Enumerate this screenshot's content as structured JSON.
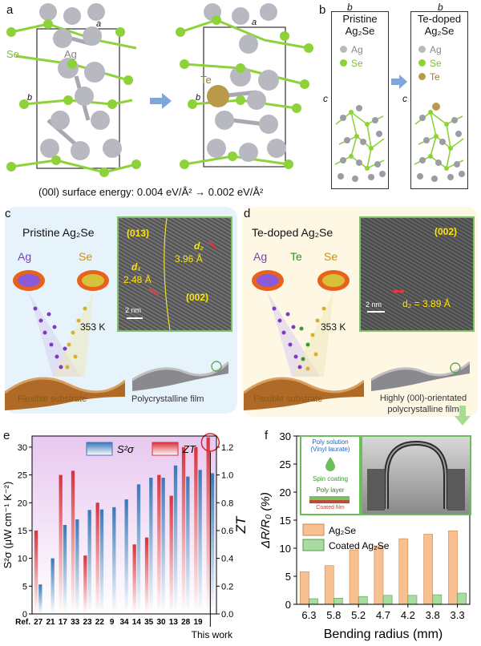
{
  "panel_a": {
    "label": "a",
    "lattice_a": "a",
    "lattice_b": "b",
    "se_label": "Se",
    "ag_label": "Ag",
    "te_label": "Te",
    "caption": "(00l) surface energy: 0.004 eV/Å² → 0.002 eV/Å²"
  },
  "panel_b": {
    "label": "b",
    "lattice_b": "b",
    "lattice_c": "c",
    "pristine_title_1": "Pristine",
    "pristine_title_2": "Ag₂Se",
    "doped_title_1": "Te-doped",
    "doped_title_2": "Ag₂Se",
    "legend_ag": "Ag",
    "legend_se": "Se",
    "legend_te": "Te"
  },
  "panel_c": {
    "label": "c",
    "title": "Pristine Ag₂Se",
    "src_ag": "Ag",
    "src_se": "Se",
    "temp": "353 K",
    "substrate": "Flexible substrate",
    "film": "Polycrystalline film",
    "tem_013": "(013)",
    "tem_002": "(002)",
    "tem_d1": "d₁",
    "tem_d1_val": "2.48 Å",
    "tem_d2": "d₂",
    "tem_d2_val": "3.96 Å",
    "scale": "2 nm"
  },
  "panel_d": {
    "label": "d",
    "title": "Te-doped Ag₂Se",
    "src_ag": "Ag",
    "src_te": "Te",
    "src_se": "Se",
    "temp": "353 K",
    "substrate": "Flexible substrate",
    "film_1": "Highly (00l)-orientated",
    "film_2": "polycrystalline film",
    "tem_002": "(002)",
    "tem_d": "d₂ = 3.89 Å",
    "scale": "2 nm"
  },
  "colors": {
    "se_green": "#8ed23a",
    "ag_gray": "#b8b8c0",
    "te_gold": "#b89a4a",
    "bar_blue": "#3a78b8",
    "bar_red": "#d8323c",
    "orange": "#f8c090",
    "lightgreen": "#a8dca0"
  },
  "chart_data": [
    {
      "type": "bar",
      "panel": "e",
      "ylabel_left": "S²σ (μW cm⁻¹ K⁻²)",
      "ylabel_right": "ZT",
      "ylim_left": [
        0,
        32
      ],
      "ylim_right": [
        0,
        1.28
      ],
      "yticks_left": [
        "0",
        "5",
        "10",
        "15",
        "20",
        "25",
        "30"
      ],
      "yticks_right": [
        "0.0",
        "0.2",
        "0.4",
        "0.6",
        "0.8",
        "1.0",
        "1.2"
      ],
      "x_prefix": "Ref.",
      "categories": [
        "27",
        "21",
        "17",
        "33",
        "23",
        "22",
        "9",
        "34",
        "14",
        "35",
        "30",
        "13",
        "28",
        "19",
        "This work"
      ],
      "series": [
        {
          "name": "S²σ",
          "values": [
            5.3,
            10,
            16,
            17,
            18.7,
            18.8,
            19.2,
            20.6,
            23.3,
            24.5,
            24.5,
            26.7,
            24.7,
            25.9,
            25.3
          ]
        },
        {
          "name": "ZT",
          "values": [
            0.6,
            null,
            1.0,
            1.03,
            0.42,
            0.8,
            null,
            null,
            0.5,
            0.55,
            1.0,
            0.85,
            1.2,
            1.2,
            1.27
          ]
        }
      ],
      "legend": [
        "S²σ",
        "ZT"
      ],
      "highlight": "This work"
    },
    {
      "type": "bar",
      "panel": "f",
      "ylabel": "ΔR/R₀ (%)",
      "xlabel": "Bending radius (mm)",
      "ylim": [
        0,
        30
      ],
      "yticks": [
        "0",
        "5",
        "10",
        "15",
        "20",
        "25",
        "30"
      ],
      "categories": [
        "6.3",
        "5.8",
        "5.2",
        "4.7",
        "4.2",
        "3.8",
        "3.3"
      ],
      "series": [
        {
          "name": "Ag₂Se",
          "values": [
            5.8,
            6.9,
            9.7,
            10.4,
            11.7,
            12.5,
            13.1
          ]
        },
        {
          "name": "Coated Ag₂Se",
          "values": [
            1.0,
            1.1,
            1.4,
            1.6,
            1.6,
            1.7,
            2.0
          ]
        }
      ],
      "legend": [
        "Ag₂Se",
        "Coated Ag₂Se"
      ],
      "inset_texts": [
        "Poly solution",
        "(Vinyl laurate)",
        "Spin coating",
        "Poly layer",
        "Coated film"
      ]
    }
  ]
}
